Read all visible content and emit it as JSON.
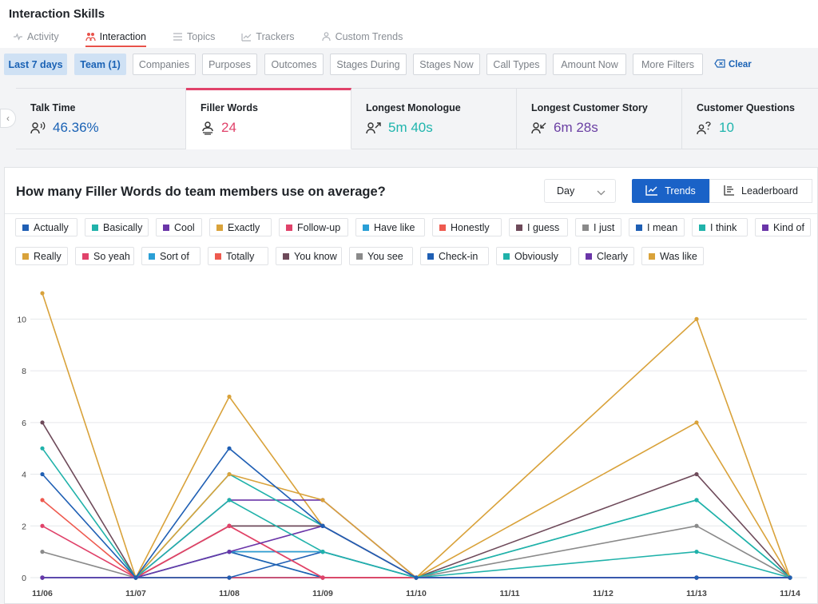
{
  "app": {
    "title": "Interaction Skills",
    "tabs": [
      {
        "label": "Activity",
        "icon": "activity-icon",
        "active": false
      },
      {
        "label": "Interaction",
        "icon": "interaction-icon",
        "active": true
      },
      {
        "label": "Topics",
        "icon": "topics-icon",
        "active": false
      },
      {
        "label": "Trackers",
        "icon": "trackers-icon",
        "active": false
      },
      {
        "label": "Custom Trends",
        "icon": "custom-trends-icon",
        "active": false
      }
    ]
  },
  "filters": {
    "chips": [
      {
        "label": "Last 7 days",
        "selected": true
      },
      {
        "label": "Team (1)",
        "selected": true
      },
      {
        "label": "Companies",
        "selected": false
      },
      {
        "label": "Purposes",
        "selected": false
      },
      {
        "label": "Outcomes",
        "selected": false
      },
      {
        "label": "Stages During",
        "selected": false
      },
      {
        "label": "Stages Now",
        "selected": false
      },
      {
        "label": "Call Types",
        "selected": false
      },
      {
        "label": "Amount Now",
        "selected": false
      },
      {
        "label": "More Filters",
        "selected": false
      }
    ],
    "clear_label": "Clear"
  },
  "cards": [
    {
      "title": "Talk Time",
      "value": "46.36%",
      "icon": "talk-time-icon",
      "color": "#1a62b5",
      "active": false
    },
    {
      "title": "Filler Words",
      "value": "24",
      "icon": "filler-words-icon",
      "color": "#e0426a",
      "active": true
    },
    {
      "title": "Longest Monologue",
      "value": "5m 40s",
      "icon": "monologue-icon",
      "color": "#1fb5ad",
      "active": false
    },
    {
      "title": "Longest Customer Story",
      "value": "6m 28s",
      "icon": "customer-story-icon",
      "color": "#6a3fa3",
      "active": false
    },
    {
      "title": "Customer Questions",
      "value": "10",
      "icon": "customer-questions-icon",
      "color": "#1fb5ad",
      "active": false
    }
  ],
  "panel": {
    "title": "How many Filler Words do team members use on average?",
    "day_select": "Day",
    "trends_label": "Trends",
    "leaderboard_label": "Leaderboard"
  },
  "chart_data": {
    "type": "line",
    "x": [
      "11/06",
      "11/07",
      "11/08",
      "11/09",
      "11/10",
      "11/11",
      "11/12",
      "11/13",
      "11/14"
    ],
    "ylim": [
      0,
      11
    ],
    "yticks": [
      0,
      2,
      4,
      6,
      8,
      10
    ],
    "grid": true,
    "legend_placement": "top",
    "series": [
      {
        "name": "Actually",
        "color": "#1f5fb4",
        "values": [
          4,
          0,
          5,
          2,
          0,
          null,
          null,
          0,
          0
        ]
      },
      {
        "name": "Basically",
        "color": "#20b2aa",
        "values": [
          5,
          0,
          3,
          1,
          0,
          null,
          null,
          3,
          0
        ]
      },
      {
        "name": "Cool",
        "color": "#6a35a8",
        "values": [
          0,
          0,
          1,
          2,
          0,
          null,
          null,
          0,
          0
        ]
      },
      {
        "name": "Exactly",
        "color": "#d9a23a",
        "values": [
          11,
          0,
          4,
          3,
          0,
          null,
          null,
          6,
          0
        ]
      },
      {
        "name": "Follow-up",
        "color": "#e0426a",
        "values": [
          2,
          0,
          2,
          0,
          0,
          null,
          null,
          0,
          0
        ]
      },
      {
        "name": "Have like",
        "color": "#2a9fd6",
        "values": [
          0,
          0,
          1,
          1,
          0,
          null,
          null,
          0,
          0
        ]
      },
      {
        "name": "Honestly",
        "color": "#ee5a4f",
        "values": [
          3,
          0,
          2,
          0,
          0,
          null,
          null,
          0,
          0
        ]
      },
      {
        "name": "I guess",
        "color": "#6e4a5a",
        "values": [
          6,
          0,
          2,
          2,
          0,
          null,
          null,
          4,
          0
        ]
      },
      {
        "name": "I just",
        "color": "#8a8a8a",
        "values": [
          1,
          0,
          1,
          1,
          0,
          null,
          null,
          2,
          0
        ]
      },
      {
        "name": "I mean",
        "color": "#1f5fb4",
        "values": [
          0,
          0,
          0,
          1,
          0,
          null,
          null,
          0,
          0
        ]
      },
      {
        "name": "I think",
        "color": "#20b2aa",
        "values": [
          0,
          0,
          4,
          2,
          0,
          null,
          null,
          3,
          0
        ]
      },
      {
        "name": "Kind of",
        "color": "#6a35a8",
        "values": [
          0,
          0,
          3,
          3,
          0,
          null,
          null,
          0,
          0
        ]
      },
      {
        "name": "Really",
        "color": "#d9a23a",
        "values": [
          0,
          0,
          7,
          2,
          0,
          null,
          null,
          10,
          0
        ]
      },
      {
        "name": "So yeah",
        "color": "#e0426a",
        "values": [
          0,
          0,
          0,
          0,
          0,
          null,
          null,
          0,
          0
        ]
      },
      {
        "name": "Sort of",
        "color": "#2a9fd6",
        "values": [
          0,
          0,
          0,
          0,
          0,
          null,
          null,
          0,
          0
        ]
      },
      {
        "name": "Totally",
        "color": "#ee5a4f",
        "values": [
          0,
          0,
          0,
          0,
          0,
          null,
          null,
          0,
          0
        ]
      },
      {
        "name": "You know",
        "color": "#6e4a5a",
        "values": [
          0,
          0,
          2,
          2,
          0,
          null,
          null,
          0,
          0
        ]
      },
      {
        "name": "You see",
        "color": "#8a8a8a",
        "values": [
          0,
          0,
          0,
          0,
          0,
          null,
          null,
          0,
          0
        ]
      },
      {
        "name": "Check-in",
        "color": "#1f5fb4",
        "values": [
          0,
          0,
          1,
          0,
          0,
          null,
          null,
          0,
          0
        ]
      },
      {
        "name": "Obviously",
        "color": "#20b2aa",
        "values": [
          0,
          0,
          1,
          0,
          0,
          null,
          null,
          1,
          0
        ]
      },
      {
        "name": "Clearly",
        "color": "#6a35a8",
        "values": [
          0,
          0,
          0,
          0,
          0,
          null,
          null,
          0,
          0
        ]
      },
      {
        "name": "Was like",
        "color": "#d9a23a",
        "values": [
          0,
          0,
          0,
          0,
          0,
          null,
          null,
          0,
          0
        ]
      }
    ]
  }
}
